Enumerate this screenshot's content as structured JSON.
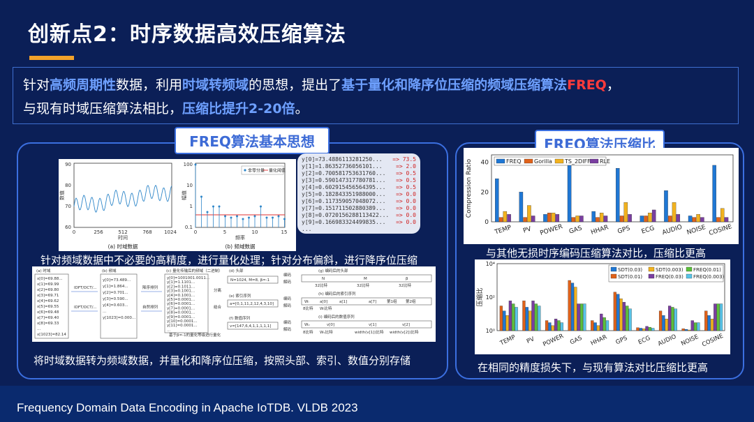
{
  "slide": {
    "title": "创新点2：时序数据高效压缩算法",
    "footer": "Frequency Domain Data Encoding in Apache IoTDB. VLDB 2023"
  },
  "intro": {
    "p1": "针对",
    "h1": "高频周期性",
    "p2": "数据，利用",
    "h2": "时域转频域",
    "p3": "的思想，提出了",
    "h3": "基于量化和降序位压缩的频域压缩算法",
    "r1": "FREQ",
    "p4": "，",
    "p5": "与现有时域压缩算法相比，",
    "h4": "压缩比提升2-20倍",
    "p6": "。"
  },
  "left_panel": {
    "tag": "FREQ算法基本思想",
    "caption1": "针对频域数据中不必要的高精度，进行量化处理；针对分布偏斜，进行降序位压缩",
    "caption2": "将时域数据转为频域数据，并量化和降序位压缩，按照头部、索引、数值分别存储",
    "fig_a": {
      "caption_a": "(a) 时域数据",
      "caption_b": "(b) 频域数据",
      "xlabel_a": "时间",
      "ylabel_a": "数值",
      "xlabel_b": "频率",
      "ylabel_b": "幅值",
      "legend_1": "非零分量",
      "legend_2": "量化阈值",
      "xticks_a": [
        "0",
        "256",
        "512",
        "768",
        "1024"
      ],
      "yticks_a": [
        "60",
        "70",
        "80",
        "90"
      ],
      "xticks_b": [
        "0",
        "5",
        "10",
        "15"
      ],
      "yticks_b": [
        "0.1",
        "1",
        "10",
        "100"
      ]
    },
    "code_lines": [
      {
        "lhs": "y[0]=73.4886113281250...",
        "rhs": "=> 73.5"
      },
      {
        "lhs": "y[1]=1.86352736056101...",
        "rhs": "=> 2.0"
      },
      {
        "lhs": "y[2]=0.70058175363176​0...",
        "rhs": "=> 0.5"
      },
      {
        "lhs": "y[3]=0.590147317780781...",
        "rhs": "=> 0.5"
      },
      {
        "lhs": "y[4]=0.60291545656439​5...",
        "rhs": "=> 0.5"
      },
      {
        "lhs": "y[5]=0.182843351988000...",
        "rhs": "=> 0.0"
      },
      {
        "lhs": "y[6]=0.117359057048072...",
        "rhs": "=> 0.0"
      },
      {
        "lhs": "y[7]=0.151711502880389...",
        "rhs": "=> 0.0"
      },
      {
        "lhs": "y[8]=0.072015628811342​2...",
        "rhs": "=> 0.0"
      },
      {
        "lhs": "y[9]=0.166983324499835...",
        "rhs": "=> 0.0"
      },
      {
        "lhs": "...",
        "rhs": ""
      }
    ],
    "fig_b": {
      "c_time": "(a) 时域",
      "c_freq": "(b) 频域",
      "c_quant": "(c) 量化传输后的频域（二进制）",
      "c_head": "(d) 头部",
      "c_index": "(e) 索引序列",
      "c_value": "(f) 数值序列",
      "g_head": "(g) 编码后的头部",
      "h_index": "(h) 编码后的索引序列",
      "i_value": "(i) 编码后的数值序列",
      "x_vals": [
        "x[0]=69.88...",
        "x[1]=69.99",
        "x[2]=69.80",
        "x[3]=69.71",
        "x[4]=69.62",
        "x[5]=69.55",
        "x[6]=69.48",
        "x[7]=69.40",
        "x[8]=69.33",
        "...",
        "x[1023]=82.14"
      ],
      "y_vals": [
        "y[0]=73.489...",
        "y[1]=1.864...",
        "y[2]=0.701...",
        "y[3]=0.590...",
        "y[4]=0.603...",
        "...",
        "y[1023]=0.000..."
      ],
      "q_vals": [
        "y[0]=1001001.0011...",
        "y[1]=1.1101...",
        "y[2]=0.1011...",
        "y[3]=0.1001...",
        "y[4]=0.1001...",
        "y[5]=0.0001...",
        "y[6]=0.0001...",
        "y[7]=0.0001...",
        "y[8]=0.0001...",
        "y[9]=0.0001...",
        "y[10]=0.0001...",
        "y[11]=0.0001...",
        "..."
      ],
      "dft": "IDFT/DCT/...",
      "dft2": "IDFT/DCT/...",
      "sort": "降序排列",
      "sort2": "自然排列",
      "split": "分离",
      "merge": "结合",
      "encode": "编码",
      "decode": "解码",
      "head_val": "N=1024, M=8, β=-1",
      "index_val": "a=[0,1,11,2,12,4,3,10]",
      "value_val": "v=[147,6,4,1,1,1,1,1]",
      "note": "基于β=-1的量化等级进行量化",
      "g_n": "N",
      "g_m": "M",
      "g_b": "β",
      "g_bits": "32比特",
      "w_i": "Wᵢ",
      "w_a0": "a[0]",
      "w_a1": "a[1]",
      "w_a7": "a[7]",
      "w_b1": "第1组",
      "w_b2": "第2组",
      "w_v": "Wᵥ",
      "w_v0": "v[0]",
      "w_v1": "v[1]",
      "w_v2": "v[2]",
      "bits8": "8比特",
      "bits_wi": "Wᵢ比特",
      "bits_wv": "Wᵥ比特",
      "bits_w": "width(v[1])比特",
      "bits_w2": "width(v[2])比特"
    }
  },
  "right_panel": {
    "tag": "FREQ算法压缩比",
    "caption1": "与其他无损时序编码压缩算法对比，压缩比更高",
    "caption2": "在相同的精度损失下，与现有算法对比压缩比更高",
    "colors": {
      "c1": "#1f77d4",
      "c2": "#e0621a",
      "c3": "#f2b21e",
      "c4": "#7a3ea0",
      "c5": "#5bbf3a",
      "c6": "#58c4e8"
    },
    "chart1": {
      "ylabel": "Compression Ratio",
      "legend": [
        "FREQ",
        "Gorilla",
        "TS_2DIFF",
        "RLE"
      ],
      "yticks": [
        "0",
        "20",
        "40"
      ],
      "categories": [
        "TEMP",
        "PV",
        "POWER",
        "GAS",
        "HHAR",
        "GPS",
        "ECG",
        "AUDIO",
        "NOISE",
        "COSINE"
      ]
    },
    "chart2": {
      "ylabel": "压缩比",
      "legend": [
        "SDT(0.03)",
        "SDT(0.003)",
        "FREQ(0.01)",
        "SDT(0.01)",
        "FREQ(0.03)",
        "FREQ(0.003)"
      ],
      "yticks": [
        "10⁰",
        "10²",
        "10⁴"
      ],
      "categories": [
        "TEMP",
        "PV",
        "POWER",
        "GAS",
        "HHAR",
        "GPS",
        "ECG",
        "AUDIO",
        "NOISE",
        "COSINE"
      ]
    }
  },
  "chart_data": [
    {
      "type": "bar",
      "title": "",
      "xlabel": "",
      "ylabel": "Compression Ratio",
      "ylim": [
        0,
        45
      ],
      "categories": [
        "TEMP",
        "PV",
        "POWER",
        "GAS",
        "HHAR",
        "GPS",
        "ECG",
        "AUDIO",
        "NOISE",
        "COSINE"
      ],
      "series": [
        {
          "name": "FREQ",
          "values": [
            29,
            20,
            5,
            42,
            7,
            36,
            4,
            21,
            4,
            38
          ]
        },
        {
          "name": "Gorilla",
          "values": [
            3,
            3,
            6,
            3,
            3,
            4,
            4,
            4,
            3,
            3
          ]
        },
        {
          "name": "TS_2DIFF",
          "values": [
            7,
            11,
            6,
            4,
            6,
            13,
            6,
            13,
            5,
            9
          ]
        },
        {
          "name": "RLE",
          "values": [
            5,
            4,
            5,
            4,
            4,
            5,
            8,
            5,
            3,
            3
          ]
        }
      ]
    },
    {
      "type": "bar",
      "title": "",
      "xlabel": "",
      "ylabel": "压缩比",
      "log_y": true,
      "ylim": [
        1,
        10000
      ],
      "categories": [
        "TEMP",
        "PV",
        "POWER",
        "GAS",
        "HHAR",
        "GPS",
        "ECG",
        "AUDIO",
        "NOISE",
        "COSINE"
      ],
      "series": [
        {
          "name": "SDT(0.01)",
          "values": [
            30,
            60,
            4,
            1000,
            4,
            200,
            1.5,
            15,
            1.3,
            15
          ]
        },
        {
          "name": "SDT(0.03)",
          "values": [
            15,
            25,
            3,
            700,
            3,
            150,
            1.4,
            8,
            1.2,
            8
          ]
        },
        {
          "name": "SDT(0.003)",
          "values": [
            8,
            15,
            2,
            400,
            2,
            80,
            1.3,
            5,
            1.1,
            5
          ]
        },
        {
          "name": "FREQ(0.03)",
          "values": [
            60,
            60,
            5,
            40,
            10,
            50,
            1.8,
            30,
            4,
            40
          ]
        },
        {
          "name": "FREQ(0.01)",
          "values": [
            40,
            40,
            4,
            40,
            6,
            30,
            1.6,
            25,
            3,
            40
          ]
        },
        {
          "name": "FREQ(0.003)",
          "values": [
            25,
            30,
            3,
            40,
            4,
            20,
            1.4,
            20,
            3,
            40
          ]
        }
      ]
    }
  ]
}
